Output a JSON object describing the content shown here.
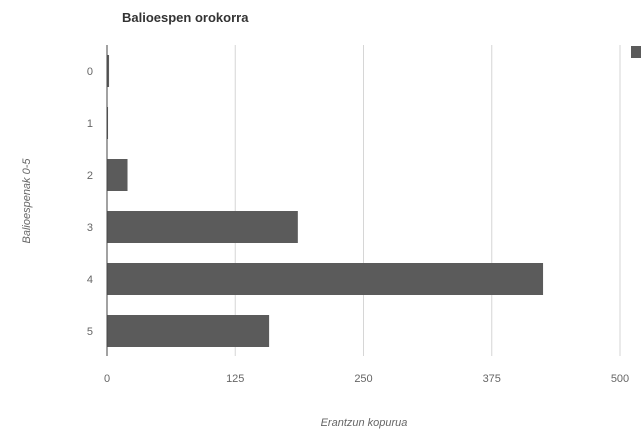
{
  "chart_data": {
    "type": "bar",
    "orientation": "horizontal",
    "title": "Balioespen orokorra",
    "xlabel": "Erantzun kopurua",
    "ylabel": "Balioespenak 0-5",
    "categories": [
      "0",
      "1",
      "2",
      "3",
      "4",
      "5"
    ],
    "series": [
      {
        "values": [
          2,
          1,
          20,
          186,
          425,
          158
        ]
      }
    ],
    "xlim": [
      0,
      500
    ],
    "xticks": [
      "0",
      "125",
      "250",
      "375",
      "500"
    ],
    "grid": true,
    "bar_color": "#5b5b5b",
    "legend_swatch_color": "#5b5b5b"
  }
}
